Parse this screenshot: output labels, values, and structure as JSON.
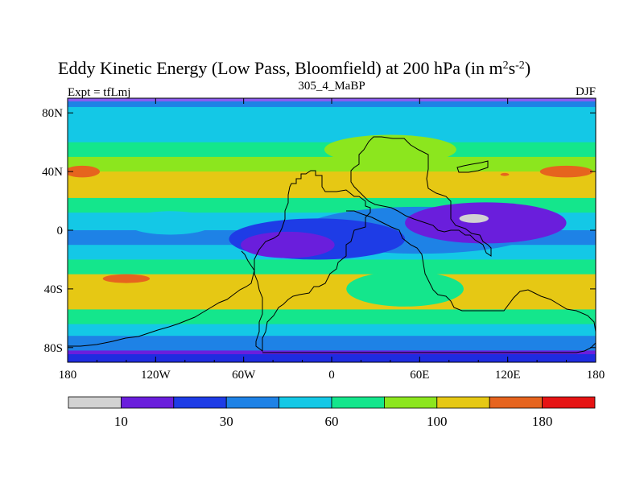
{
  "chart_data": {
    "type": "heatmap",
    "title": "Eddy Kinetic Energy (Low Pass, Bloomfield) at 200 hPa (in m",
    "title_units": {
      "base": "m",
      "exp1": "2",
      "mid": "s",
      "exp2": "-2",
      "close": ")"
    },
    "subtitle_left": "Expt = tfLmj",
    "subtitle_center": "305_4_MaBP",
    "subtitle_right": "DJF",
    "x_ticks": [
      {
        "value": -180,
        "label": "180"
      },
      {
        "value": -120,
        "label": "120W"
      },
      {
        "value": -60,
        "label": "60W"
      },
      {
        "value": 0,
        "label": "0"
      },
      {
        "value": 60,
        "label": "60E"
      },
      {
        "value": 120,
        "label": "120E"
      },
      {
        "value": 180,
        "label": "180"
      }
    ],
    "y_ticks": [
      {
        "value": 80,
        "label": "80N"
      },
      {
        "value": 40,
        "label": "40N"
      },
      {
        "value": 0,
        "label": "0"
      },
      {
        "value": -40,
        "label": "40S"
      },
      {
        "value": -80,
        "label": "80S"
      }
    ],
    "xlim": [
      -180,
      180
    ],
    "ylim": [
      -90,
      90
    ],
    "colorbar": {
      "colors": [
        "#d2d2d2",
        "#6a1edc",
        "#1e3ce6",
        "#1e82e6",
        "#14c8e6",
        "#14e68c",
        "#8ce61e",
        "#e6c814",
        "#e6641e",
        "#e61414"
      ],
      "bounds": [
        5,
        10,
        20,
        30,
        45,
        60,
        80,
        100,
        140,
        180,
        250
      ],
      "labels": [
        "10",
        "30",
        "60",
        "100",
        "180"
      ],
      "label_values": [
        10,
        30,
        60,
        100,
        180
      ]
    },
    "field_bands": [
      {
        "lat": 90,
        "value": 30
      },
      {
        "lat": 86,
        "value": 30
      },
      {
        "lat": 84,
        "value": 45
      },
      {
        "lat": 72,
        "value": 55
      },
      {
        "lat": 60,
        "value": 70
      },
      {
        "lat": 50,
        "value": 95
      },
      {
        "lat": 40,
        "value": 125
      },
      {
        "lat": 30,
        "value": 100
      },
      {
        "lat": 22,
        "value": 70
      },
      {
        "lat": 12,
        "value": 45
      },
      {
        "lat": 0,
        "value": 40
      },
      {
        "lat": -10,
        "value": 50
      },
      {
        "lat": -20,
        "value": 75
      },
      {
        "lat": -30,
        "value": 100
      },
      {
        "lat": -36,
        "value": 115
      },
      {
        "lat": -44,
        "value": 100
      },
      {
        "lat": -54,
        "value": 70
      },
      {
        "lat": -64,
        "value": 50
      },
      {
        "lat": -72,
        "value": 35
      },
      {
        "lat": -78,
        "value": 30
      },
      {
        "lat": -82,
        "value": 18
      },
      {
        "lat": -86,
        "value": 12
      },
      {
        "lat": -90,
        "value": 12
      }
    ],
    "field_features": [
      {
        "lon": 105,
        "lat": 5,
        "rlon": 55,
        "rlat": 14,
        "value": 15
      },
      {
        "lon": 97,
        "lat": 8,
        "rlon": 10,
        "rlat": 3,
        "value": 7
      },
      {
        "lon": -30,
        "lat": -10,
        "rlon": 32,
        "rlat": 9,
        "value": 15
      },
      {
        "lon": -10,
        "lat": -6,
        "rlon": 60,
        "rlat": 14,
        "value": 25
      },
      {
        "lon": 60,
        "lat": 0,
        "rlon": 80,
        "rlat": 16,
        "value": 30
      },
      {
        "lon": -170,
        "lat": 40,
        "rlon": 12,
        "rlat": 4,
        "value": 160
      },
      {
        "lon": 160,
        "lat": 40,
        "rlon": 18,
        "rlat": 4,
        "value": 160
      },
      {
        "lon": 118,
        "lat": 38,
        "rlon": 3,
        "rlat": 1,
        "value": 160
      },
      {
        "lon": -140,
        "lat": -33,
        "rlon": 16,
        "rlat": 3,
        "value": 170
      },
      {
        "lon": 40,
        "lat": 55,
        "rlon": 45,
        "rlat": 10,
        "value": 85
      },
      {
        "lon": -110,
        "lat": 5,
        "rlon": 30,
        "rlat": 8,
        "value": 55
      },
      {
        "lon": 50,
        "lat": -40,
        "rlon": 40,
        "rlat": 12,
        "value": 65
      }
    ]
  }
}
